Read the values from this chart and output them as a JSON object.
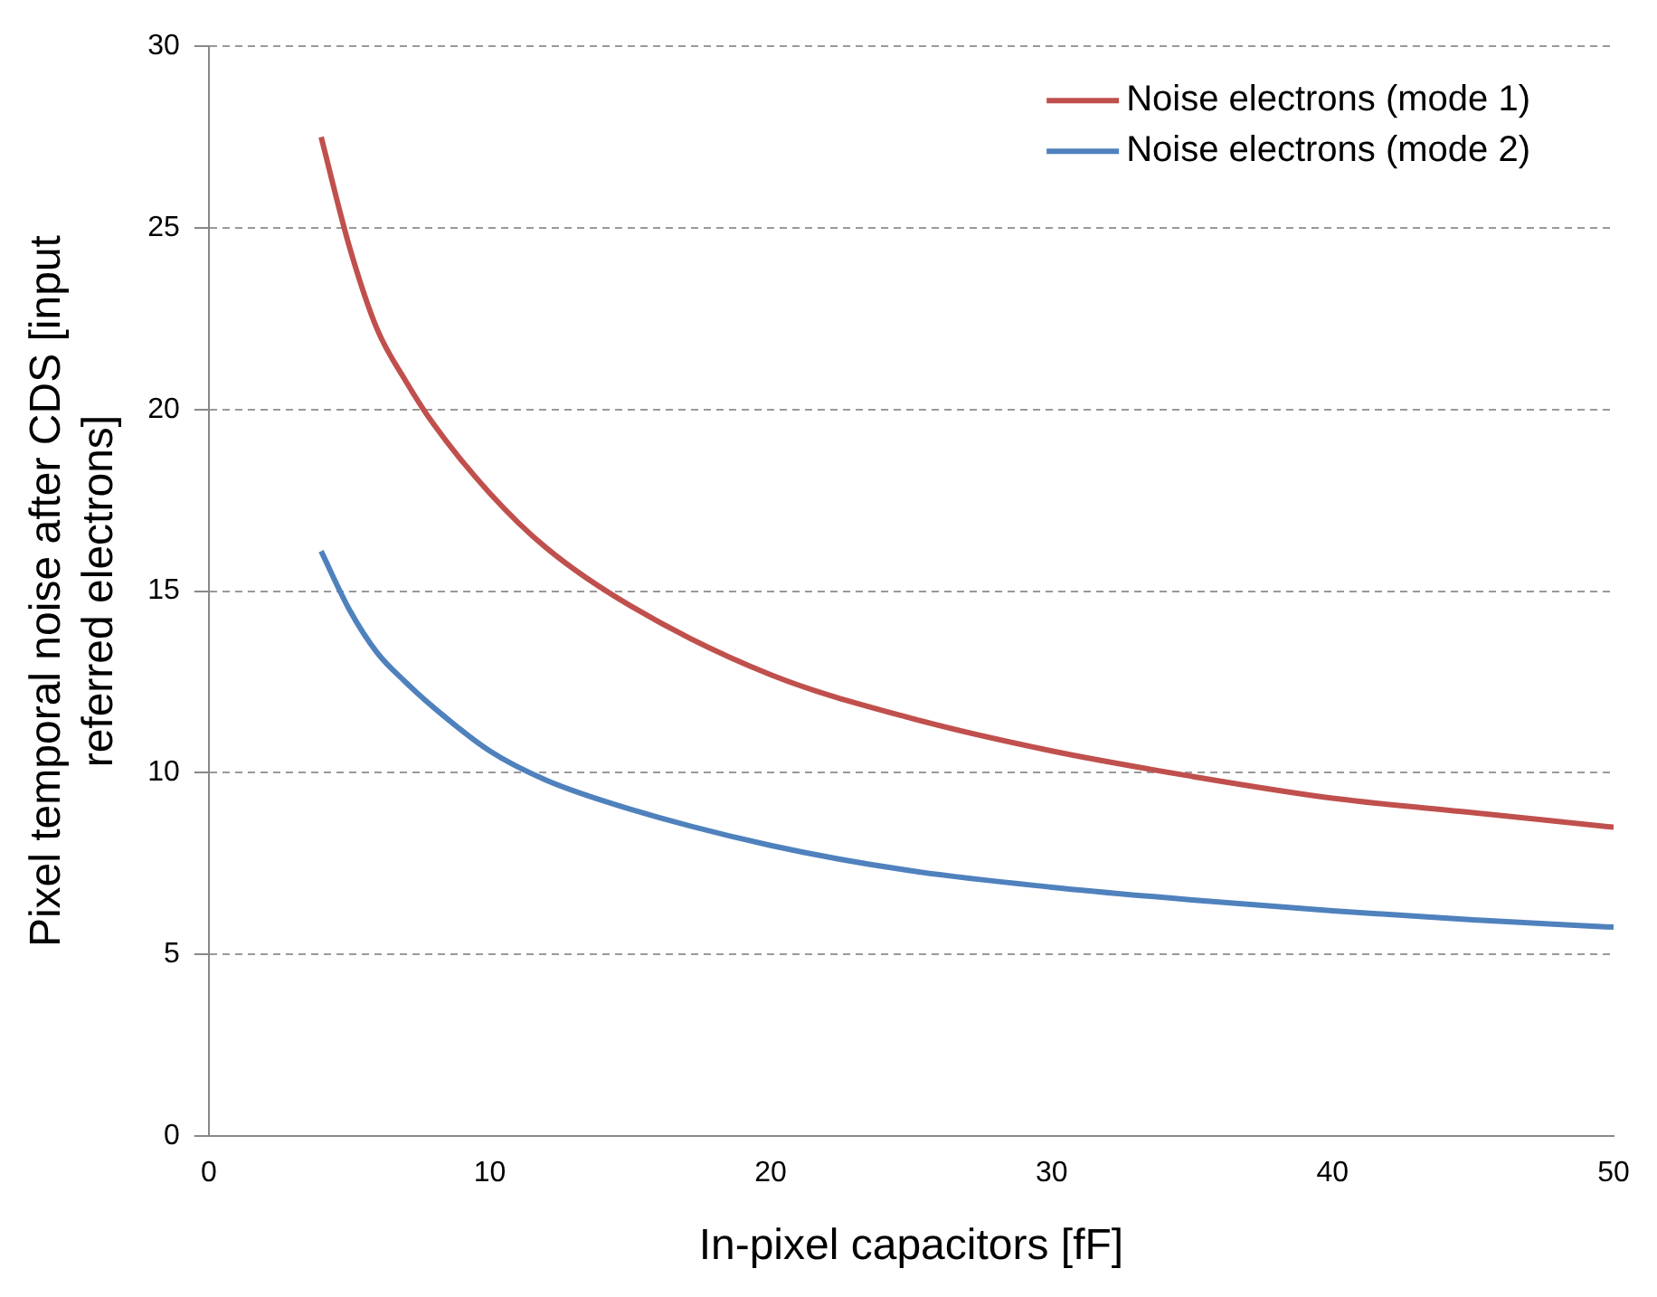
{
  "chart_data": {
    "type": "line",
    "xlabel": "In-pixel capacitors [fF]",
    "ylabel": "Pixel temporal noise after CDS [input referred electrons]",
    "x": [
      4,
      5,
      6,
      7,
      8,
      10,
      12,
      15,
      20,
      25,
      30,
      35,
      40,
      45,
      50
    ],
    "series": [
      {
        "name": "Noise electrons (mode 1)",
        "color": "#c0504d",
        "values": [
          27.5,
          24.5,
          22.2,
          20.8,
          19.6,
          17.7,
          16.2,
          14.6,
          12.7,
          11.5,
          10.6,
          9.9,
          9.3,
          8.9,
          8.5
        ]
      },
      {
        "name": "Noise electrons (mode 2)",
        "color": "#4f81bd",
        "values": [
          16.1,
          14.5,
          13.3,
          12.5,
          11.8,
          10.6,
          9.8,
          9.0,
          8.0,
          7.3,
          6.85,
          6.5,
          6.2,
          5.95,
          5.75
        ]
      }
    ],
    "xlim": [
      0,
      50
    ],
    "xticks": [
      0,
      10,
      20,
      30,
      40,
      50
    ],
    "ylim": [
      0,
      30
    ],
    "yticks": [
      0,
      5,
      10,
      15,
      20,
      25,
      30
    ],
    "grid": "y",
    "legend": "top right",
    "marker": "none",
    "line_style": "solid"
  }
}
